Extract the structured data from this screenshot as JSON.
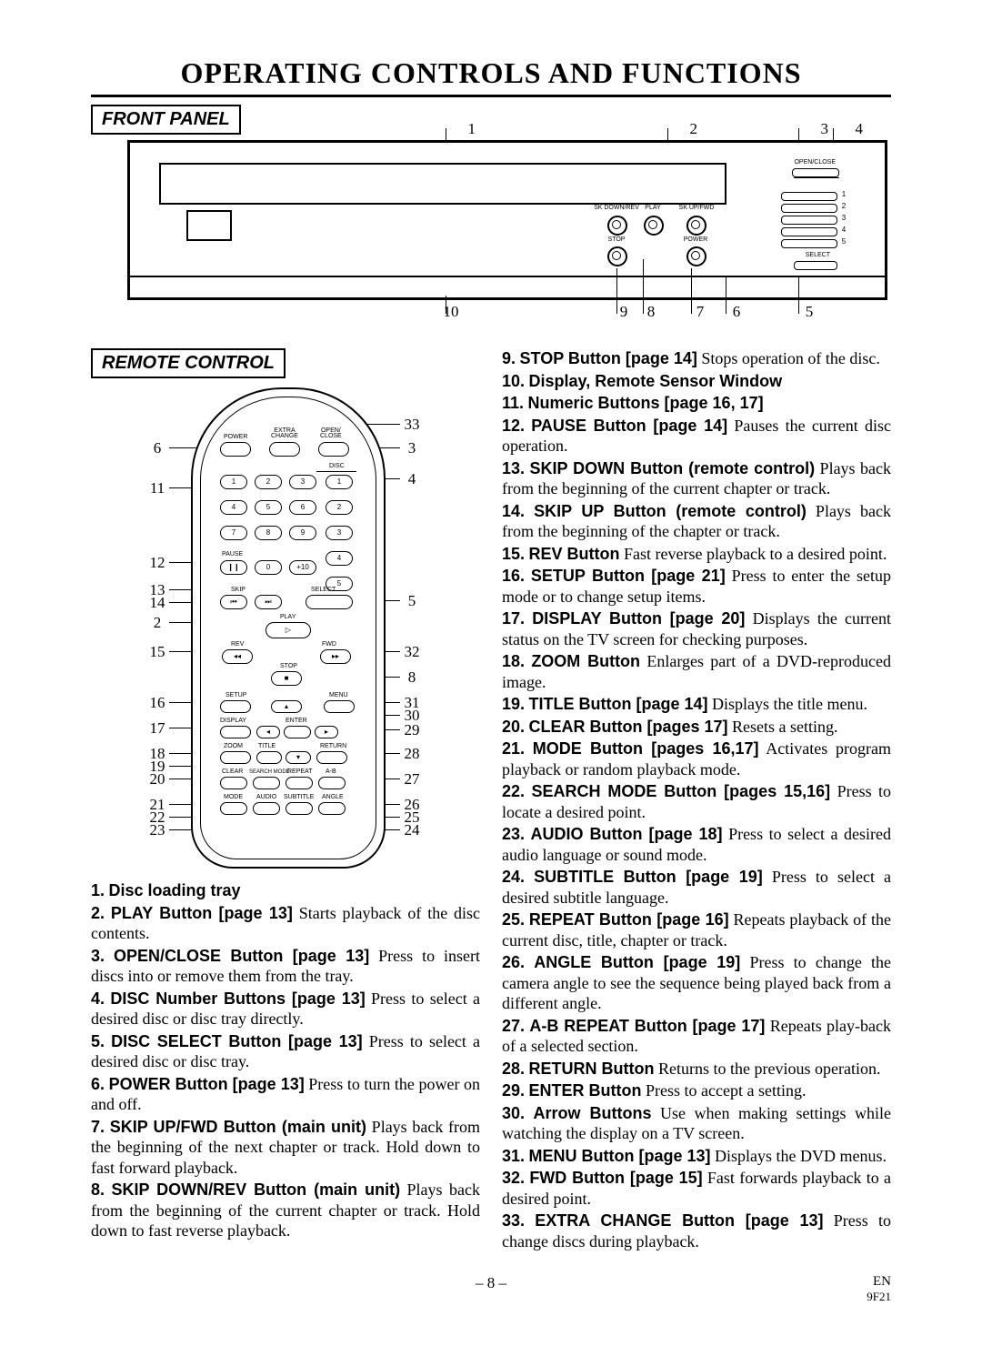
{
  "page": {
    "title": "OPERATING CONTROLS AND FUNCTIONS",
    "page_number": "– 8 –",
    "lang_mark": "EN",
    "doc_code": "9F21"
  },
  "sections": {
    "front_panel": "FRONT PANEL",
    "remote_control": "REMOTE CONTROL"
  },
  "front_panel_callouts": {
    "top": [
      "1",
      "2",
      "3",
      "4"
    ],
    "bottom": [
      "10",
      "9",
      "8",
      "7",
      "6",
      "5"
    ]
  },
  "front_panel_labels": {
    "open_close": "OPEN/CLOSE",
    "rev": "SK DOWN/REV",
    "play": "PLAY",
    "fwd": "SK UP/FWD",
    "stop": "STOP",
    "power": "POWER",
    "select": "SELECT"
  },
  "remote": {
    "row1": {
      "power": "POWER",
      "extra": "EXTRA\nCHANGE",
      "open": "OPEN/\nCLOSE"
    },
    "disc_label": "DISC",
    "pause": "PAUSE",
    "skip": "SKIP",
    "select": "SELECT",
    "play": "PLAY",
    "rev": "REV",
    "fwd": "FWD",
    "stop": "STOP",
    "setup": "SETUP",
    "menu": "MENU",
    "display": "DISPLAY",
    "enter": "ENTER",
    "zoom": "ZOOM",
    "title": "TITLE",
    "return": "RETURN",
    "clear": "CLEAR",
    "search": "SEARCH MODE",
    "repeat": "REPEAT",
    "ab": "A-B",
    "mode": "MODE",
    "audio": "AUDIO",
    "subtitle": "SUBTITLE",
    "angle": "ANGLE"
  },
  "remote_callouts_left": [
    "6",
    "11",
    "12",
    "13",
    "14",
    "2",
    "15",
    "16",
    "17",
    "18",
    "19",
    "20",
    "21",
    "22",
    "23"
  ],
  "remote_callouts_right": [
    "33",
    "3",
    "4",
    "5",
    "32",
    "8",
    "31",
    "30",
    "29",
    "28",
    "27",
    "26",
    "25",
    "24"
  ],
  "items": [
    {
      "n": "1.",
      "lead": "Disc loading tray",
      "txt": ""
    },
    {
      "n": "2.",
      "lead": "PLAY Button [page 13]",
      "txt": "  Starts playback of the disc contents."
    },
    {
      "n": "3.",
      "lead": "OPEN/CLOSE Button [page 13]",
      "txt": "  Press to insert discs into or remove them from the tray."
    },
    {
      "n": "4.",
      "lead": "DISC Number Buttons [page 13]",
      "txt": "  Press to select a desired disc or disc tray directly."
    },
    {
      "n": "5.",
      "lead": "DISC SELECT Button [page 13]",
      "txt": "  Press to select a desired disc or disc tray."
    },
    {
      "n": "6.",
      "lead": "POWER Button [page 13]",
      "txt": "  Press to turn the power on and off."
    },
    {
      "n": "7.",
      "lead": "SKIP UP/FWD Button (main unit)",
      "txt": "  Plays back from the beginning of the next chapter or track. Hold down to fast forward playback."
    },
    {
      "n": "8.",
      "lead": "SKIP DOWN/REV Button (main unit)",
      "txt": "  Plays back from the beginning of the current chapter or track. Hold down to fast reverse playback."
    },
    {
      "n": "9.",
      "lead": "STOP Button [page 14]",
      "txt": "  Stops operation of the disc."
    },
    {
      "n": "10.",
      "lead": "Display, Remote Sensor Window",
      "txt": ""
    },
    {
      "n": "11.",
      "lead": "Numeric Buttons [page 16, 17]",
      "txt": ""
    },
    {
      "n": "12.",
      "lead": "PAUSE Button [page 14]",
      "txt": "  Pauses the current disc operation."
    },
    {
      "n": "13.",
      "lead": "SKIP DOWN Button (remote control)",
      "txt": "  Plays back from the beginning of the current chapter or track."
    },
    {
      "n": "14.",
      "lead": "SKIP UP Button (remote control)",
      "txt": "  Plays back from the beginning of the chapter or track."
    },
    {
      "n": "15.",
      "lead": "REV Button",
      "txt": "  Fast reverse playback to a desired point."
    },
    {
      "n": "16.",
      "lead": "SETUP Button [page 21]",
      "txt": "  Press to enter the setup mode or to change setup items."
    },
    {
      "n": "17.",
      "lead": "DISPLAY Button [page 20]",
      "txt": "  Displays the current status on the TV screen for checking purposes."
    },
    {
      "n": "18.",
      "lead": "ZOOM Button",
      "txt": "  Enlarges part of a DVD-reproduced image."
    },
    {
      "n": "19.",
      "lead": "TITLE Button [page 14]",
      "txt": "  Displays the title menu."
    },
    {
      "n": "20.",
      "lead": "CLEAR Button [pages 17]",
      "txt": "  Resets a setting."
    },
    {
      "n": "21.",
      "lead": "MODE Button [pages 16,17]",
      "txt": "  Activates program playback or random playback mode."
    },
    {
      "n": "22.",
      "lead": "SEARCH MODE Button [pages 15,16]",
      "txt": "  Press to locate a desired point."
    },
    {
      "n": "23.",
      "lead": "AUDIO Button [page 18]",
      "txt": "  Press to select a desired audio language or sound mode."
    },
    {
      "n": "24.",
      "lead": "SUBTITLE Button [page 19]",
      "txt": "  Press to select a desired subtitle language."
    },
    {
      "n": "25.",
      "lead": "REPEAT Button [page 16]",
      "txt": "  Repeats playback of the current disc, title, chapter or track."
    },
    {
      "n": "26.",
      "lead": "ANGLE Button [page 19]",
      "txt": "  Press to change the camera angle to see the sequence being played back from a different angle."
    },
    {
      "n": "27.",
      "lead": "A-B REPEAT Button [page 17]",
      "txt": "  Repeats play-back of a selected section."
    },
    {
      "n": "28.",
      "lead": "RETURN Button",
      "txt": "  Returns to the previous operation."
    },
    {
      "n": "29.",
      "lead": "ENTER Button",
      "txt": "  Press to accept a setting."
    },
    {
      "n": "30.",
      "lead": "Arrow Buttons",
      "txt": "  Use when making settings while watching the display on a TV screen."
    },
    {
      "n": "31.",
      "lead": "MENU Button [page 13]",
      "txt": "  Displays the DVD menus."
    },
    {
      "n": "32.",
      "lead": "FWD Button [page 15]",
      "txt": "  Fast forwards playback to a desired point."
    },
    {
      "n": "33.",
      "lead": "EXTRA CHANGE Button [page 13]",
      "txt": "  Press to change discs during playback."
    }
  ]
}
